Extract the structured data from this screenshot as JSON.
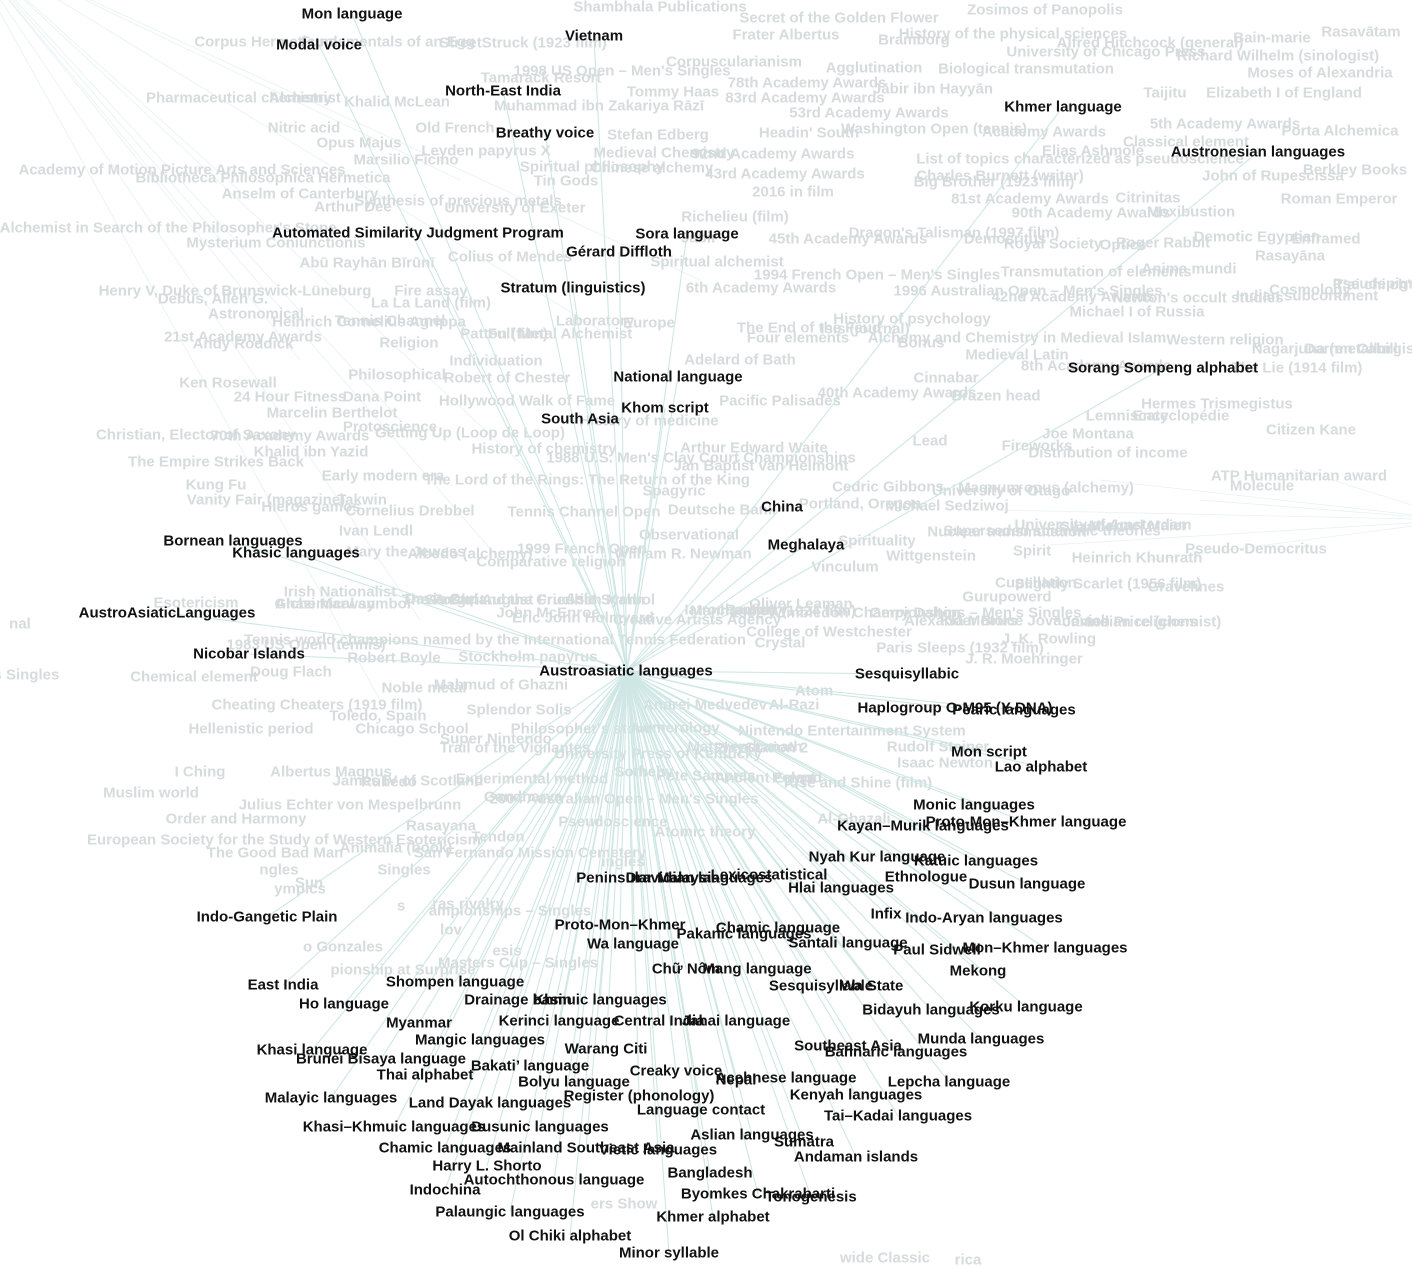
{
  "colors": {
    "edge": "#cfe7e4",
    "foreground_text": "#111111",
    "background_text": "#d6dbdd"
  },
  "center": {
    "label": "Austroasiatic languages"
  },
  "neighbors": [
    "Mon language",
    "Modal voice",
    "Vietnam",
    "North-East India",
    "Breathy voice",
    "Khmer language",
    "Austronesian languages",
    "Automated Similarity Judgment Program",
    "Sora language",
    "Gérard Diffloth",
    "Stratum (linguistics)",
    "National language",
    "Khom script",
    "South Asia",
    "Sorang Sompeng alphabet",
    "China",
    "Meghalaya",
    "Bornean languages",
    "Khasic languages",
    "AustroAsiaticLanguages",
    "Nicobar Islands",
    "Sesquisyllabic",
    "Haplogroup O-M95 (Y-DNA)",
    "Pearic languages",
    "Mon script",
    "Lao alphabet",
    "Monic languages",
    "Proto-Mon–Khmer language",
    "Kayan–Murik languages",
    "Nyah Kur language",
    "Katuic languages",
    "Ethnologue",
    "Dusun language",
    "Lexicostatistical",
    "Peninsular Malaysia",
    "Dravidian languages",
    "Hlai languages",
    "Indo-Gangetic Plain",
    "Infix",
    "Indo-Aryan languages",
    "Proto-Mon–Khmer",
    "Chamic language",
    "Pakanic languages",
    "Wa language",
    "Santali language",
    "Paul Sidwell",
    "Mon–Khmer languages",
    "Chữ Nôm",
    "Wa State",
    "Mang language",
    "Mekong",
    "Shompen language",
    "Sesquisyllable",
    "East India",
    "Drainage basin",
    "Khmuic languages",
    "Ho language",
    "Bidayuh languages",
    "Korku language",
    "Myanmar",
    "Kerinci language",
    "Central India",
    "Jahai language",
    "Mangic languages",
    "Munda languages",
    "Khasi language",
    "Warang Citi",
    "Southeast Asia",
    "Bahnaric languages",
    "Brunei Bisaya language",
    "Bakati’ language",
    "Thai alphabet",
    "Creaky voice",
    "Nepal",
    "Acehnese language",
    "Bolyu language",
    "Lepcha language",
    "Malayic languages",
    "Register (phonology)",
    "Kenyah languages",
    "Land Dayak languages",
    "Language contact",
    "Tai–Kadai languages",
    "Khasi–Khmuic languages",
    "Dusunic languages",
    "Aslian languages",
    "Sumatra",
    "Chamic languages",
    "Mainland Southeast Asia",
    "Vietic languages",
    "Andaman islands",
    "Harry L. Shorto",
    "Bangladesh",
    "Autochthonous language",
    "Indochina",
    "Byomkes Chakrabarti",
    "Tonogenesis",
    "Palaungic languages",
    "Khmer alphabet",
    "Ol Chiki alphabet",
    "Minor syllable"
  ],
  "background_labels": [
    "Shambhala Publications",
    "Secret of the Golden Flower",
    "Zosimos of Panopolis",
    "Corpus Hermeticum",
    "Fundamentals of an Egg",
    "StreetStruck (1923 film)",
    "Frater Albertus",
    "History of the physical sciences",
    "Bramborg",
    "Alfred Hitchcock (general)",
    "Bain-marie",
    "Rasavātam",
    "Corpuscularianism",
    "University of Chicago Press",
    "Richard Wilhelm (sinologist)",
    "Moses of Alexandria",
    "1998 US Open – Men's Singles",
    "Tamarack Resort",
    "78th Academy Awards",
    "Agglutination",
    "Biological transmutation",
    "Pharmaceutical chemistry",
    "Alchemist",
    "Khalid McLean",
    "Tommy Haas",
    "83rd Academy Awards",
    "Jābir ibn Hayyān",
    "Taijitu",
    "Elizabeth I of England",
    "Muhammad ibn Zakariya Rāzī",
    "53rd Academy Awards",
    "Nitric acid",
    "Old French",
    "Stefan Edberg",
    "Washington Open (tennis)",
    "Headin' South",
    "Academy Awards",
    "5th Academy Awards",
    "Porta Alchemica",
    "Opus Majus",
    "Leyden papyrus X",
    "Medieval Chemistry",
    "92nd Academy Awards",
    "Classical element",
    "Elias Ashmole",
    "Marsilio Ficino",
    "Spiritual philosophy",
    "Chinese alchemy",
    "List of topics characterized as pseudoscience",
    "Academy of Motion Picture Arts and Sciences",
    "Bibliotheca Philosophica Hermetica",
    "Tin Gods",
    "43rd Academy Awards",
    "Charles Burnett (writer)",
    "Big Brother (1923 film)",
    "John of Rupescissa",
    "Berkley Books",
    "Anselm of Canterbury",
    "2016 in film",
    "Citrinitas",
    "Roman Emperor",
    "Arthur Dee",
    "Synthesis of precious metals",
    "University of Exeter",
    "81st Academy Awards",
    "90th Academy Awards",
    "Moxibustion",
    "The Alchemist in Search of the Philosopher's Stone",
    "Richelieu (film)",
    "Mysterium Coniunctionis",
    "Jabir",
    "45th Academy Awards",
    "Dragon's Talisman (1997 film)",
    "Democritus",
    "Demotic Egyptian",
    "Optics",
    "Royal Society",
    "Enframed",
    "Roger Rabbit",
    "Rasayāna",
    "Abū Rayhān Bīrūnī",
    "Colius of Mendes",
    "Spiritual alchemist",
    "1994 French Open – Men's Singles",
    "1996 Australian Open – Men's Singles",
    "Transmutation of elements",
    "Anima mundi",
    "Henry V, Duke of Brunswick-Lüneburg",
    "Fire assay",
    "6th Academy Awards",
    "42nd Academy Awards",
    "Newton's occult studies",
    "Indian subcontinent",
    "Cosmology",
    "T'ai chi ch'uan",
    "Debus, Allen G.",
    "La La Land (film)",
    "Heinrich Cornelius Agrippa",
    "Laboratory",
    "Europe",
    "The End of the Feud",
    "Michael I of Russia",
    "Pseudepigrapha",
    "Astronomical",
    "Tennis Channel",
    "Full Metal Alchemist",
    "History of psychology",
    "Nagarjuna (metallurgist)",
    "21st Academy Awards",
    "Patton (film)",
    "Four elements",
    "Isis (journal)",
    "Alchemy and Chemistry in Medieval Islam",
    "Western religion",
    "Darren Cahill",
    "Andy Roddick",
    "Religion",
    "Bonus",
    "Medieval Latin",
    "8th Academy Awards",
    "The Lie (1914 film)",
    "Individuation",
    "Adelard of Bath",
    "Ken Rosewall",
    "Philosophical",
    "Robert of Chester",
    "Cinnabar",
    "24 Hour Fitness",
    "Dana Point",
    "Hollywood Walk of Fame",
    "40th Academy Awards",
    "Brazen head",
    "Hermes Trismegistus",
    "Pacific Palisades",
    "Marcelin Berthelot",
    "Lemniscate",
    "Protoscience",
    "Encyclopédie",
    "History of medicine",
    "Joe Montana",
    "Christian, Elector of Saxony",
    "70th Academy Awards",
    "Getting Up (Loop de Loop)",
    "Citizen Kane",
    "Arthur Edward Waite",
    "Lead",
    "Fireworks",
    "Khalid ibn Yazid",
    "History of chemistry",
    "The Empire Strikes Back",
    "1988 U.S. Men's Clay Court Championships",
    "Jan Baptist van Helmont",
    "Distribution of income",
    "Early modern era",
    "The Lord of the Rings: The Return of the King",
    "ATP Humanitarian award",
    "Kung Fu",
    "Cedric Gibbons",
    "Magnum opus (alchemy)",
    "Molecule",
    "University of Otago",
    "Vanity Fair (magazine)",
    "Takwin",
    "Spagyric",
    "Portland, Oregon",
    "Michael Sedziwoj",
    "Chaucer",
    "Hieros gamos",
    "Cornelius Drebbel",
    "Tennis Channel Open",
    "Deutsche Bank",
    "Nuclear transmutation",
    "Michael Maier",
    "Ivan Lendl",
    "Observational",
    "Spirituality",
    "Superseded scientific theories",
    "University of Amsterdam",
    "Mary the Jewess",
    "Albedo (alchemy)",
    "1999 French Open",
    "William R. Newman",
    "Spirit",
    "Heinrich Khunrath",
    "Pseudo-Democritus",
    "Comparative religion",
    "Vinculum",
    "Wittgenstein",
    "Cupellation",
    "Slightly Scarlet (1956 film)",
    "Gurupowerd",
    "Gravelines",
    "Irish Nationalist",
    "Ghazi Marwan",
    "Sanskrit",
    "The Forge and the Crucible",
    "Asia",
    "Oliver Leaman",
    "1992 Wimbledon Championships – Men's Singles",
    "Alexander Bruce Jovanovich",
    "Indian religions",
    "Esotericism",
    "Alchemical symbol",
    "Davis Cup",
    "Carl August Friedrich Mahn",
    "Symbol",
    "Radian",
    "John McEnroe",
    "Iatrochemistry",
    "Manhandled (1924 film)",
    "Gerry Dalton",
    "Kia Motors",
    "James Price (chemist)",
    "Eric John Holmyard",
    "Creative Artists Agency",
    "College of Westchester",
    "J. K. Rowling",
    "1983 US Open (tennis)",
    "Tennis world champions named by the International Tennis Federation",
    "Crystal",
    "Paris Sleeps (1932 film)",
    "Robert Boyle",
    "Stockholm papyrus",
    "J. R. Moehringer",
    "Chemical element",
    "Doug Flach",
    "Mahmud of Ghazni",
    "Noble metal",
    "Atom",
    "Cheating Cheaters (1919 film)",
    "Splendor Solis",
    "Andrei Medvedev",
    "Al-Razi",
    "Toledo, Spain",
    "Hellenistic period",
    "Chicago School",
    "Numerology",
    "Nintendo Entertainment System",
    "Super Nintendo",
    "Philosopher's stone",
    "Matsyendranath",
    "Rudolf Steiner",
    "Trail of the Vigilantes",
    "University Press of Kentucky",
    "PlayStation 2",
    "I Ching",
    "Isaac Newton",
    "Albertus Magnus",
    "Sotheby",
    "Pete Sampras",
    "Ancient Egypt",
    "Poland",
    "Rise and Shine (film)",
    "Rubedo",
    "James IV of Scotland",
    "Experimental method",
    "Julius Echter von Mespelbrunn",
    "Muslim world",
    "Gandharva",
    "2004 Australian Open – Men's Singles",
    "Order and Harmony",
    "Pseudoscience",
    "Rasayana",
    "Al-Ghazali",
    "Atomic theory",
    "European Society for the Study of Western Esotericism",
    "Tendon",
    "Animalia (book)",
    "The Good Bad Man",
    "San Fernando Mission Cemetery",
    "ingles",
    "ngles",
    "Singles",
    "Sun",
    "ympics",
    "ras rivalry",
    "s",
    "ampionships – Singles",
    "lov",
    "o Gonzales",
    "esis",
    "Masters Cup – Singles",
    "pionship at Surprise",
    "ers Show",
    "wide Classic",
    "rica",
    "nal",
    "n's Singles"
  ]
}
